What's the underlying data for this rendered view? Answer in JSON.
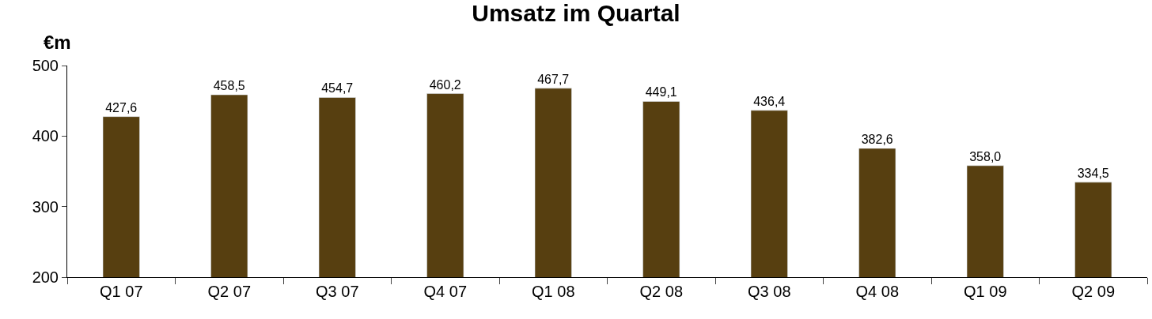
{
  "chart_data": {
    "type": "bar",
    "title": "Umsatz im Quartal",
    "ylabel": "€m",
    "categories": [
      "Q1 07",
      "Q2 07",
      "Q3 07",
      "Q4 07",
      "Q1 08",
      "Q2 08",
      "Q3 08",
      "Q4 08",
      "Q1 09",
      "Q2 09"
    ],
    "values": [
      427.6,
      458.5,
      454.7,
      460.2,
      467.7,
      449.1,
      436.4,
      382.6,
      358.0,
      334.5
    ],
    "value_labels": [
      "427,6",
      "458,5",
      "454,7",
      "460,2",
      "467,7",
      "449,1",
      "436,4",
      "382,6",
      "358,0",
      "334,5"
    ],
    "color": "#573f10",
    "ylim": [
      200,
      500
    ],
    "yticks": [
      200,
      300,
      400,
      500
    ],
    "grid": false,
    "legend": false
  }
}
